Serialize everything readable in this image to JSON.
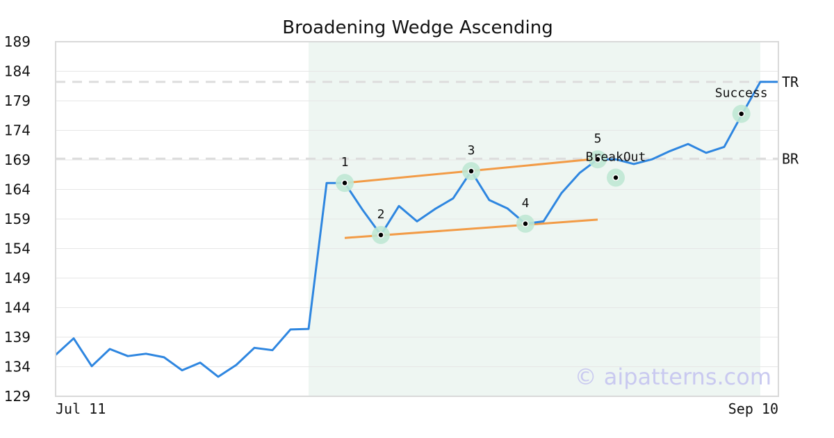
{
  "chart_data": {
    "type": "line",
    "title": "Broadening Wedge Ascending",
    "xlabel": "",
    "ylabel": "",
    "x_tick_labels": [
      "Jul 11",
      "Sep 10"
    ],
    "y_ticks": [
      129,
      134,
      139,
      144,
      149,
      154,
      159,
      164,
      169,
      174,
      179,
      184,
      189
    ],
    "ylim": [
      129,
      189
    ],
    "grid": true,
    "series": [
      {
        "color": "#2e86e0",
        "values": [
          136.0,
          138.8,
          134.1,
          137.0,
          135.8,
          136.2,
          135.6,
          133.4,
          134.7,
          132.3,
          134.3,
          137.2,
          136.8,
          140.3,
          140.4,
          165.1,
          165.1,
          160.5,
          156.3,
          161.2,
          158.6,
          160.7,
          162.5,
          167.1,
          162.2,
          160.8,
          158.2,
          158.6,
          163.4,
          166.8,
          169.1,
          169.1,
          168.3,
          169.1,
          170.5,
          171.7,
          170.2,
          171.2,
          176.8,
          182.2,
          182.2
        ]
      }
    ],
    "highlight_range": {
      "start_index": 14,
      "end_index": 39,
      "color": "#eef6f2"
    },
    "trend_lines": [
      {
        "color": "#f29b46",
        "x0": 16,
        "y0": 165.1,
        "x1": 30,
        "y1": 169.2
      },
      {
        "color": "#f29b46",
        "x0": 16,
        "y0": 155.8,
        "x1": 30,
        "y1": 158.9
      }
    ],
    "reference_lines": [
      {
        "label": "TR",
        "value": 182.2,
        "color": "#dddddd"
      },
      {
        "label": "BR",
        "value": 169.2,
        "color": "#dddddd"
      }
    ],
    "pattern_points": [
      {
        "label": "1",
        "index": 16,
        "value": 165.1
      },
      {
        "label": "2",
        "index": 18,
        "value": 156.3
      },
      {
        "label": "3",
        "index": 23,
        "value": 167.1
      },
      {
        "label": "4",
        "index": 26,
        "value": 158.2
      },
      {
        "label": "5",
        "index": 30,
        "value": 169.1
      },
      {
        "label": "BreakOut",
        "index": 31,
        "value": 166.0
      },
      {
        "label": "Success",
        "index": 37.95,
        "value": 176.8
      }
    ],
    "marker_color": "#bfe8d4"
  },
  "watermark": "© aipatterns.com"
}
